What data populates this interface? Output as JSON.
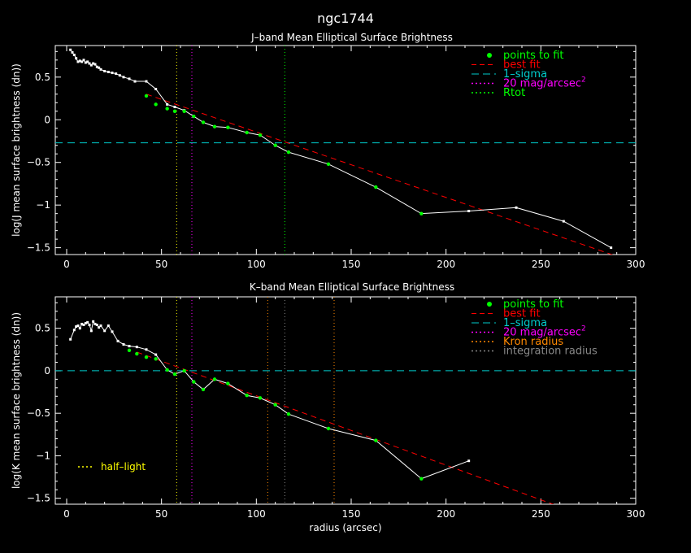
{
  "title": "ngc1744",
  "colors": {
    "background": "#000000",
    "axes": "#ffffff",
    "data": "#ffffff",
    "fit_points": "#00ff00",
    "best_fit": "#ff0000",
    "sigma": "#00cccc",
    "mag20": "#ff00ff",
    "kron": "#ff8800",
    "rtot": "#00ff00",
    "half_light": "#ffff00",
    "integration": "#888888"
  },
  "chart_data": [
    {
      "type": "line",
      "title": "J–band Mean Elliptical Surface Brightness",
      "xlabel": "",
      "ylabel": "log(J mean surface brightness (dn))",
      "xlim": [
        -6,
        300
      ],
      "ylim": [
        -1.58,
        0.87
      ],
      "xticks": [
        0,
        50,
        100,
        150,
        200,
        250,
        300
      ],
      "yticks": [
        0.5,
        0,
        -0.5,
        -1,
        -1.5
      ],
      "xtick_labels": [
        "0",
        "50",
        "100",
        "150",
        "200",
        "250",
        "300"
      ],
      "ytick_labels": [
        "0.5",
        "0",
        "−0.5",
        "−1",
        "−1.5"
      ],
      "legend_position": "top-right",
      "legend": [
        {
          "label": "points to fit",
          "style": "dot",
          "color": "#00ff00"
        },
        {
          "label": "best fit",
          "style": "dash",
          "color": "#ff0000"
        },
        {
          "label": "1–sigma",
          "style": "longdash",
          "color": "#00cccc"
        },
        {
          "label": "20 mag/arcsec",
          "sup": "2",
          "style": "dot-line",
          "color": "#ff00ff"
        },
        {
          "label": "Rtot",
          "style": "dot-line",
          "color": "#00ff00"
        }
      ],
      "series": [
        {
          "role": "profile",
          "x": [
            2,
            3,
            4,
            5,
            6,
            7,
            8,
            9,
            10,
            11,
            12,
            13,
            14,
            15,
            16,
            17,
            18,
            20,
            22,
            24,
            26,
            28,
            30,
            33,
            36,
            42,
            47,
            53,
            57,
            62,
            67,
            72,
            78,
            85,
            95,
            102,
            110,
            117,
            138,
            163,
            187,
            212,
            237,
            262,
            287
          ],
          "y": [
            0.82,
            0.79,
            0.76,
            0.72,
            0.68,
            0.69,
            0.68,
            0.7,
            0.67,
            0.68,
            0.66,
            0.64,
            0.66,
            0.65,
            0.62,
            0.61,
            0.59,
            0.57,
            0.56,
            0.55,
            0.54,
            0.52,
            0.5,
            0.48,
            0.45,
            0.45,
            0.36,
            0.18,
            0.15,
            0.11,
            0.04,
            -0.03,
            -0.08,
            -0.09,
            -0.15,
            -0.18,
            -0.3,
            -0.38,
            -0.52,
            -0.79,
            -1.1,
            -1.07,
            -1.03,
            -1.19,
            -1.5
          ]
        },
        {
          "role": "fit-points",
          "x": [
            42,
            47,
            53,
            57,
            62,
            67,
            72,
            78,
            85,
            95,
            102,
            110,
            117,
            138,
            163,
            187
          ],
          "y": [
            0.28,
            0.18,
            0.13,
            0.1,
            0.1,
            0.04,
            -0.03,
            -0.08,
            -0.09,
            -0.15,
            -0.18,
            -0.3,
            -0.38,
            -0.52,
            -0.79,
            -1.1
          ]
        },
        {
          "role": "best-fit",
          "x": [
            42,
            290
          ],
          "y": [
            0.3,
            -1.6
          ]
        }
      ],
      "hlines": [
        {
          "role": "1-sigma",
          "y": -0.27,
          "color": "#00cccc"
        }
      ],
      "vlines": [
        {
          "role": "half-light",
          "x": 58,
          "color": "#ffff00"
        },
        {
          "role": "20-mag",
          "x": 66,
          "color": "#ff00ff"
        },
        {
          "role": "rtot",
          "x": 115,
          "color": "#00ff00"
        }
      ]
    },
    {
      "type": "line",
      "title": "K–band Mean Elliptical Surface Brightness",
      "xlabel": "radius (arcsec)",
      "ylabel": "log(K mean surface brightness (dn))",
      "xlim": [
        -6,
        300
      ],
      "ylim": [
        -1.57,
        0.87
      ],
      "xticks": [
        0,
        50,
        100,
        150,
        200,
        250,
        300
      ],
      "yticks": [
        0.5,
        0,
        -0.5,
        -1,
        -1.5
      ],
      "xtick_labels": [
        "0",
        "50",
        "100",
        "150",
        "200",
        "250",
        "300"
      ],
      "ytick_labels": [
        "0.5",
        "0",
        "−0.5",
        "−1",
        "−1.5"
      ],
      "legend_position": "top-right",
      "legend": [
        {
          "label": "points to fit",
          "style": "dot",
          "color": "#00ff00"
        },
        {
          "label": "best fit",
          "style": "dash",
          "color": "#ff0000"
        },
        {
          "label": "1–sigma",
          "style": "longdash",
          "color": "#00cccc"
        },
        {
          "label": "20 mag/arcsec",
          "sup": "2",
          "style": "dot-line",
          "color": "#ff00ff"
        },
        {
          "label": "Kron radius",
          "style": "dot-line",
          "color": "#ff8800"
        },
        {
          "label": "integration radius",
          "style": "dot-line",
          "color": "#888888"
        }
      ],
      "annotation": {
        "label": "half–light",
        "color": "#ffff00"
      },
      "series": [
        {
          "role": "profile",
          "x": [
            2,
            4,
            5,
            6,
            7,
            8,
            9,
            10,
            11,
            12,
            13,
            14,
            15,
            16,
            17,
            18,
            20,
            22,
            24,
            27,
            30,
            33,
            37,
            42,
            47,
            53,
            57,
            62,
            67,
            72,
            78,
            85,
            95,
            102,
            110,
            117,
            138,
            163,
            187,
            212
          ],
          "y": [
            0.37,
            0.48,
            0.52,
            0.53,
            0.5,
            0.55,
            0.54,
            0.56,
            0.57,
            0.54,
            0.47,
            0.58,
            0.55,
            0.54,
            0.51,
            0.53,
            0.47,
            0.53,
            0.46,
            0.35,
            0.31,
            0.29,
            0.28,
            0.25,
            0.19,
            0.01,
            -0.04,
            0.0,
            -0.13,
            -0.22,
            -0.1,
            -0.15,
            -0.29,
            -0.32,
            -0.4,
            -0.51,
            -0.68,
            -0.82,
            -1.27,
            -1.06
          ]
        },
        {
          "role": "fit-points",
          "x": [
            33,
            37,
            42,
            47,
            53,
            57,
            62,
            67,
            72,
            78,
            85,
            95,
            102,
            110,
            117,
            138,
            163,
            187
          ],
          "y": [
            0.24,
            0.2,
            0.16,
            0.14,
            0.01,
            -0.04,
            0.0,
            -0.13,
            -0.22,
            -0.1,
            -0.15,
            -0.29,
            -0.32,
            -0.4,
            -0.51,
            -0.68,
            -0.82,
            -1.27
          ]
        },
        {
          "role": "best-fit",
          "x": [
            37,
            260
          ],
          "y": [
            0.22,
            -1.6
          ]
        }
      ],
      "hlines": [
        {
          "role": "1-sigma",
          "y": 0.0,
          "color": "#00cccc"
        }
      ],
      "vlines": [
        {
          "role": "half-light",
          "x": 58,
          "color": "#ffff00"
        },
        {
          "role": "20-mag",
          "x": 66,
          "color": "#ff00ff"
        },
        {
          "role": "kron",
          "x": 106,
          "color": "#ff8800"
        },
        {
          "role": "integration",
          "x": 115,
          "color": "#888888"
        },
        {
          "role": "kron-outer",
          "x": 141,
          "color": "#ff8800"
        }
      ]
    }
  ]
}
